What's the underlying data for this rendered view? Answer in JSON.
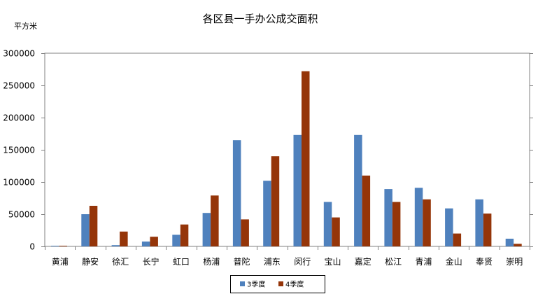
{
  "chart_data": {
    "type": "bar",
    "title": "各区县一手办公成交面积",
    "ylabel": "平方米",
    "xlabel": "",
    "ylim": [
      0,
      300000
    ],
    "yticks": [
      0,
      50000,
      100000,
      150000,
      200000,
      250000,
      300000
    ],
    "grid": false,
    "legend_position": "bottom",
    "categories": [
      "黄浦",
      "静安",
      "徐汇",
      "长宁",
      "虹口",
      "杨浦",
      "普陀",
      "浦东",
      "闵行",
      "宝山",
      "嘉定",
      "松江",
      "青浦",
      "金山",
      "奉贤",
      "崇明"
    ],
    "series": [
      {
        "name": "3季度",
        "color": "#4f81bd",
        "values": [
          1000,
          50000,
          2000,
          7500,
          18000,
          52000,
          165000,
          102000,
          173000,
          69000,
          173000,
          89000,
          91000,
          59000,
          73000,
          12000
        ]
      },
      {
        "name": "4季度",
        "color": "#953509",
        "values": [
          1000,
          63000,
          23000,
          15000,
          34000,
          79000,
          42000,
          140000,
          272000,
          45000,
          110000,
          69000,
          73000,
          20000,
          51000,
          4000
        ]
      }
    ]
  }
}
